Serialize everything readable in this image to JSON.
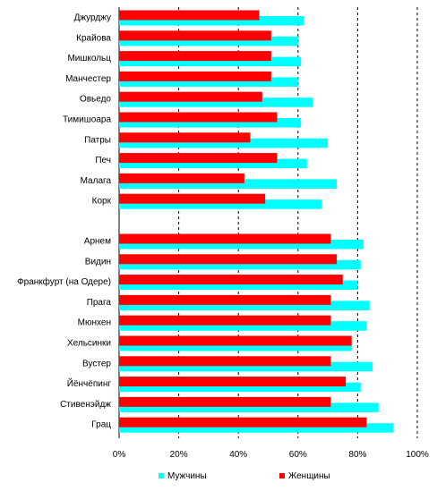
{
  "chart_data": {
    "type": "bar",
    "orientation": "horizontal",
    "categories": [
      "Джурджу",
      "Крайова",
      "Мишкольц",
      "Манчестер",
      "Овьедо",
      "Тимишоара",
      "Патры",
      "Печ",
      "Малага",
      "Корк",
      "Арнем",
      "Видин",
      "Франкфурт (на Одере)",
      "Прага",
      "Мюнхен",
      "Хельсинки",
      "Вустер",
      "Йёнчёпинг",
      "Стивенэйдж",
      "Грац"
    ],
    "gap_after_category": "Корк",
    "series": [
      {
        "name": "Мужчины",
        "color": "#00ffff",
        "values": [
          62,
          60,
          61,
          60,
          65,
          61,
          70,
          63,
          73,
          68,
          82,
          81,
          80,
          84,
          83,
          78,
          85,
          81,
          87,
          92
        ]
      },
      {
        "name": "Женщины",
        "color": "#ff0000",
        "values": [
          47,
          51,
          51,
          51,
          48,
          53,
          44,
          53,
          42,
          49,
          71,
          73,
          75,
          71,
          71,
          78,
          71,
          76,
          71,
          83
        ]
      }
    ],
    "xlim": [
      0,
      100
    ],
    "x_ticks": [
      "0%",
      "20%",
      "40%",
      "60%",
      "80%",
      "100%"
    ],
    "grid": "vertical dashed",
    "legend_position": "bottom"
  }
}
